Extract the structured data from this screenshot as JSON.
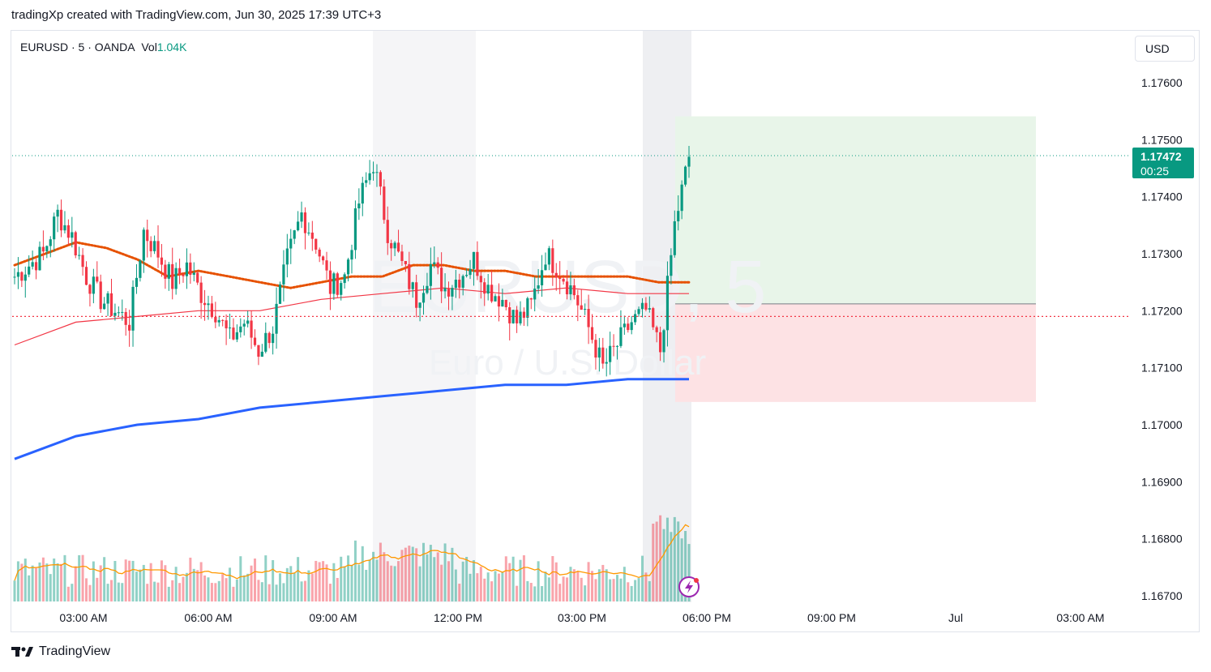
{
  "header": {
    "caption": "tradingXp created with TradingView.com, Jun 30, 2025 17:39 UTC+3"
  },
  "legend": {
    "symbol": "EURUSD · 5 · OANDA",
    "vol_label": "Vol",
    "vol_value": "1.04K"
  },
  "currency": "USD",
  "watermark": {
    "symbol": "EURUSD, 5",
    "name": "Euro / U.S. Dollar"
  },
  "footer": {
    "brand": "TradingView"
  },
  "colors": {
    "up": "#089981",
    "down": "#f23645",
    "ema_orange": "#e65100",
    "ema_red": "#f23645",
    "ema_blue": "#2962ff",
    "vol_ma": "#ff9800",
    "profit_zone": "#e8f5e9",
    "loss_zone": "#fde2e4"
  },
  "chart_data": {
    "type": "candlestick",
    "symbol": "EURUSD",
    "interval": "5",
    "y_axis_ticks": [
      "1.17600",
      "1.17500",
      "1.17400",
      "1.17300",
      "1.17200",
      "1.17100",
      "1.17000",
      "1.16900",
      "1.16800",
      "1.16700"
    ],
    "ylim": [
      1.1667,
      1.176
    ],
    "x_axis_ticks": [
      "03:00 AM",
      "06:00 AM",
      "09:00 AM",
      "12:00 PM",
      "03:00 PM",
      "06:00 PM",
      "09:00 PM",
      "Jul",
      "03:00 AM"
    ],
    "last_price": "1.17472",
    "countdown": "00:25",
    "last_price_value": 1.17472,
    "entry_level": 1.1719,
    "position": {
      "type": "long",
      "entry": 1.17212,
      "target": 1.17541,
      "stop": 1.1704
    },
    "moving_averages": [
      {
        "color": "orange",
        "points": [
          [
            0,
            1.1728
          ],
          [
            1,
            1.173
          ],
          [
            2,
            1.1732
          ],
          [
            3,
            1.1731
          ],
          [
            4,
            1.1729
          ],
          [
            5,
            1.1726
          ],
          [
            6,
            1.1727
          ],
          [
            7,
            1.1726
          ],
          [
            8,
            1.1725
          ],
          [
            9,
            1.1724
          ],
          [
            10,
            1.1725
          ],
          [
            11,
            1.1726
          ],
          [
            12,
            1.1726
          ],
          [
            13,
            1.1728
          ],
          [
            14,
            1.1728
          ],
          [
            15,
            1.1727
          ],
          [
            16,
            1.1727
          ],
          [
            17,
            1.1726
          ],
          [
            18,
            1.1726
          ],
          [
            19,
            1.1726
          ],
          [
            20,
            1.1726
          ],
          [
            21,
            1.1725
          ],
          [
            22,
            1.1725
          ]
        ]
      },
      {
        "color": "red",
        "points": [
          [
            0,
            1.1714
          ],
          [
            2,
            1.1718
          ],
          [
            4,
            1.1719
          ],
          [
            6,
            1.172
          ],
          [
            8,
            1.172
          ],
          [
            10,
            1.1722
          ],
          [
            12,
            1.1723
          ],
          [
            14,
            1.1724
          ],
          [
            16,
            1.1723
          ],
          [
            18,
            1.1724
          ],
          [
            20,
            1.1723
          ],
          [
            22,
            1.1723
          ]
        ]
      },
      {
        "color": "blue",
        "points": [
          [
            0,
            1.1694
          ],
          [
            2,
            1.1698
          ],
          [
            4,
            1.17
          ],
          [
            6,
            1.1701
          ],
          [
            8,
            1.1703
          ],
          [
            10,
            1.1704
          ],
          [
            12,
            1.1705
          ],
          [
            14,
            1.1706
          ],
          [
            16,
            1.1707
          ],
          [
            18,
            1.1707
          ],
          [
            20,
            1.1708
          ],
          [
            22,
            1.1708
          ]
        ]
      }
    ],
    "candles_close": [
      1.1726,
      1.1728,
      1.173,
      1.1737,
      1.1733,
      1.1726,
      1.1722,
      1.172,
      1.1718,
      1.1734,
      1.173,
      1.1725,
      1.1728,
      1.1723,
      1.172,
      1.1715,
      1.1718,
      1.1713,
      1.1717,
      1.1729,
      1.1737,
      1.1732,
      1.1724,
      1.1726,
      1.1739,
      1.1746,
      1.1734,
      1.1728,
      1.1722,
      1.1728,
      1.1724,
      1.1726,
      1.1729,
      1.1724,
      1.1722,
      1.1718,
      1.1721,
      1.173,
      1.1727,
      1.1723,
      1.1717,
      1.171,
      1.1714,
      1.1718,
      1.172,
      1.1713,
      1.1735,
      1.1747
    ]
  }
}
